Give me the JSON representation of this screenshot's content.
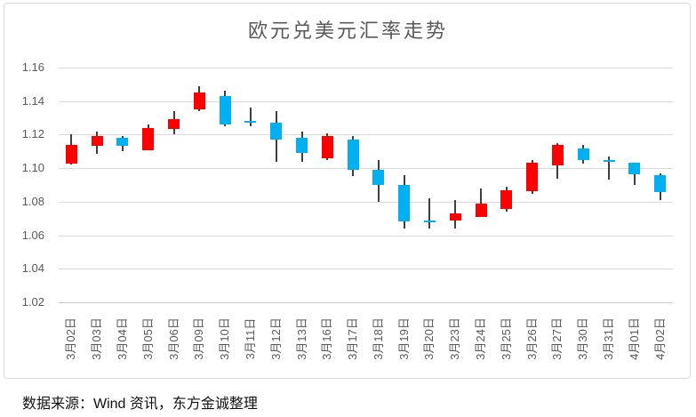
{
  "title": "欧元兑美元汇率走势",
  "source_note": "数据来源：Wind 资讯，东方金诚整理",
  "chart_data": {
    "type": "candlestick",
    "title": "欧元兑美元汇率走势",
    "xlabel": "",
    "ylabel": "",
    "ylim": [
      1.02,
      1.16
    ],
    "ytick_interval": 0.02,
    "y_ticks": [
      1.16,
      1.14,
      1.12,
      1.1,
      1.08,
      1.06,
      1.04,
      1.02
    ],
    "grid": true,
    "legend": "none",
    "colors": {
      "up": "#fe0000",
      "down": "#00b0f0",
      "wick": "#3f3f3f",
      "grid_line": "#d9d9d9",
      "axis_text": "#595959",
      "title_text": "#595959",
      "frame_border": "#d9d9d9"
    },
    "categories": [
      "3月02日",
      "3月03日",
      "3月04日",
      "3月05日",
      "3月06日",
      "3月09日",
      "3月10日",
      "3月11日",
      "3月12日",
      "3月13日",
      "3月16日",
      "3月17日",
      "3月18日",
      "3月19日",
      "3月20日",
      "3月23日",
      "3月24日",
      "3月25日",
      "3月26日",
      "3月27日",
      "3月30日",
      "3月31日",
      "4月01日",
      "4月02日"
    ],
    "candles": [
      {
        "date": "3月02日",
        "open": 1.103,
        "high": 1.12,
        "low": 1.102,
        "close": 1.114
      },
      {
        "date": "3月03日",
        "open": 1.113,
        "high": 1.122,
        "low": 1.109,
        "close": 1.119
      },
      {
        "date": "3月04日",
        "open": 1.118,
        "high": 1.119,
        "low": 1.11,
        "close": 1.113
      },
      {
        "date": "3月05日",
        "open": 1.111,
        "high": 1.126,
        "low": 1.111,
        "close": 1.124
      },
      {
        "date": "3月06日",
        "open": 1.123,
        "high": 1.134,
        "low": 1.12,
        "close": 1.129
      },
      {
        "date": "3月09日",
        "open": 1.135,
        "high": 1.149,
        "low": 1.134,
        "close": 1.145
      },
      {
        "date": "3月10日",
        "open": 1.143,
        "high": 1.146,
        "low": 1.125,
        "close": 1.126
      },
      {
        "date": "3月11日",
        "open": 1.128,
        "high": 1.136,
        "low": 1.125,
        "close": 1.127
      },
      {
        "date": "3月12日",
        "open": 1.127,
        "high": 1.134,
        "low": 1.104,
        "close": 1.117
      },
      {
        "date": "3月13日",
        "open": 1.118,
        "high": 1.122,
        "low": 1.104,
        "close": 1.109
      },
      {
        "date": "3月16日",
        "open": 1.106,
        "high": 1.121,
        "low": 1.105,
        "close": 1.119
      },
      {
        "date": "3月17日",
        "open": 1.117,
        "high": 1.119,
        "low": 1.095,
        "close": 1.099
      },
      {
        "date": "3月18日",
        "open": 1.099,
        "high": 1.105,
        "low": 1.08,
        "close": 1.09
      },
      {
        "date": "3月19日",
        "open": 1.09,
        "high": 1.096,
        "low": 1.064,
        "close": 1.068
      },
      {
        "date": "3月20日",
        "open": 1.069,
        "high": 1.082,
        "low": 1.064,
        "close": 1.068
      },
      {
        "date": "3月23日",
        "open": 1.069,
        "high": 1.081,
        "low": 1.064,
        "close": 1.073
      },
      {
        "date": "3月24日",
        "open": 1.071,
        "high": 1.088,
        "low": 1.071,
        "close": 1.079
      },
      {
        "date": "3月25日",
        "open": 1.076,
        "high": 1.089,
        "low": 1.074,
        "close": 1.087
      },
      {
        "date": "3月26日",
        "open": 1.086,
        "high": 1.105,
        "low": 1.085,
        "close": 1.103
      },
      {
        "date": "3月27日",
        "open": 1.102,
        "high": 1.115,
        "low": 1.094,
        "close": 1.114
      },
      {
        "date": "3月30日",
        "open": 1.112,
        "high": 1.114,
        "low": 1.103,
        "close": 1.105
      },
      {
        "date": "3月31日",
        "open": 1.105,
        "high": 1.107,
        "low": 1.093,
        "close": 1.104
      },
      {
        "date": "4月01日",
        "open": 1.103,
        "high": 1.103,
        "low": 1.09,
        "close": 1.096
      },
      {
        "date": "4月02日",
        "open": 1.096,
        "high": 1.097,
        "low": 1.081,
        "close": 1.086
      }
    ]
  }
}
